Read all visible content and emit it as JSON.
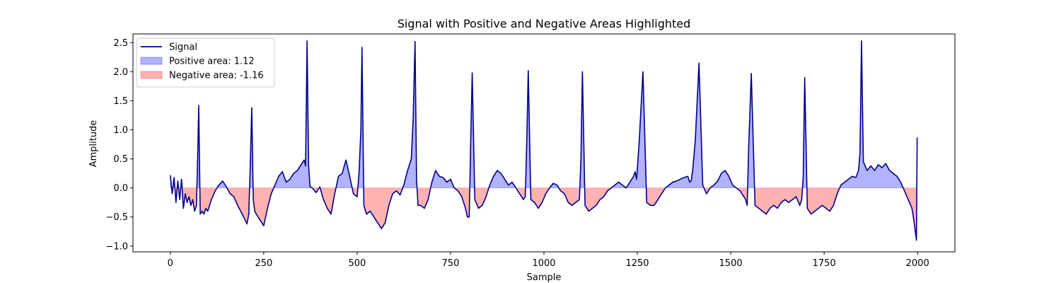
{
  "chart_data": {
    "type": "line",
    "title": "Signal with Positive and Negative Areas Highlighted",
    "xlabel": "Sample",
    "ylabel": "Amplitude",
    "xlim": [
      -100,
      2100
    ],
    "ylim": [
      -1.1,
      2.65
    ],
    "xticks": [
      0,
      250,
      500,
      750,
      1000,
      1250,
      1500,
      1750,
      2000
    ],
    "yticks": [
      -1.0,
      -0.5,
      0.0,
      0.5,
      1.0,
      1.5,
      2.0,
      2.5
    ],
    "grid": false,
    "legend_position": "top-left",
    "legend": [
      {
        "label": "Signal",
        "kind": "line",
        "color": "#00008b"
      },
      {
        "label": "Positive area: 1.12",
        "kind": "patch",
        "color": "#0000ff"
      },
      {
        "label": "Negative area: -1.16",
        "kind": "patch",
        "color": "#ff0000"
      }
    ],
    "series": [
      {
        "name": "Signal",
        "color": "#00008b",
        "fill_positive_color": "#0000ff",
        "fill_negative_color": "#ff0000",
        "x": [
          0,
          5,
          10,
          15,
          20,
          25,
          30,
          35,
          40,
          45,
          50,
          55,
          60,
          65,
          70,
          73,
          76,
          80,
          85,
          90,
          95,
          100,
          110,
          120,
          130,
          140,
          150,
          160,
          170,
          180,
          190,
          200,
          205,
          210,
          214,
          218,
          222,
          226,
          230,
          240,
          250,
          260,
          270,
          280,
          290,
          300,
          310,
          320,
          330,
          340,
          350,
          358,
          362,
          366,
          370,
          374,
          380,
          390,
          400,
          410,
          420,
          430,
          440,
          450,
          460,
          470,
          480,
          490,
          500,
          505,
          510,
          513,
          518,
          525,
          535,
          545,
          555,
          565,
          575,
          585,
          595,
          605,
          615,
          625,
          635,
          640,
          645,
          650,
          655,
          659,
          663,
          670,
          680,
          690,
          700,
          710,
          720,
          730,
          740,
          750,
          760,
          770,
          780,
          790,
          795,
          800,
          804,
          808,
          815,
          825,
          835,
          845,
          855,
          865,
          875,
          885,
          895,
          905,
          915,
          925,
          935,
          945,
          950,
          954,
          958,
          965,
          975,
          985,
          995,
          1005,
          1015,
          1025,
          1035,
          1045,
          1055,
          1065,
          1075,
          1085,
          1095,
          1099,
          1103,
          1110,
          1120,
          1130,
          1140,
          1150,
          1160,
          1170,
          1180,
          1190,
          1200,
          1210,
          1220,
          1230,
          1240,
          1244,
          1248,
          1255,
          1265,
          1275,
          1285,
          1295,
          1305,
          1315,
          1325,
          1335,
          1345,
          1355,
          1365,
          1375,
          1385,
          1390,
          1394,
          1398,
          1405,
          1415,
          1425,
          1435,
          1445,
          1455,
          1465,
          1475,
          1485,
          1495,
          1505,
          1515,
          1525,
          1535,
          1540,
          1544,
          1548,
          1555,
          1565,
          1575,
          1585,
          1595,
          1605,
          1615,
          1625,
          1635,
          1645,
          1655,
          1665,
          1675,
          1685,
          1690,
          1694,
          1698,
          1705,
          1715,
          1725,
          1735,
          1745,
          1755,
          1765,
          1775,
          1785,
          1795,
          1805,
          1815,
          1825,
          1835,
          1842,
          1846,
          1850,
          1855,
          1865,
          1875,
          1885,
          1895,
          1905,
          1915,
          1925,
          1935,
          1945,
          1955,
          1965,
          1975,
          1985,
          1990,
          1994,
          1997,
          1999
        ],
        "y": [
          0.22,
          -0.1,
          0.18,
          -0.25,
          0.12,
          -0.2,
          0.15,
          -0.35,
          -0.1,
          -0.25,
          -0.15,
          -0.3,
          -0.2,
          -0.4,
          -0.3,
          0.5,
          1.42,
          -0.45,
          -0.4,
          -0.45,
          -0.35,
          -0.4,
          -0.2,
          -0.05,
          0.05,
          0.12,
          0.02,
          -0.1,
          -0.15,
          -0.3,
          -0.42,
          -0.55,
          -0.62,
          -0.45,
          0.4,
          1.38,
          -0.2,
          -0.4,
          -0.45,
          -0.55,
          -0.65,
          -0.35,
          -0.1,
          0.05,
          0.2,
          0.28,
          0.1,
          0.15,
          0.25,
          0.3,
          0.4,
          0.48,
          0.38,
          2.53,
          0.4,
          0.02,
          0.0,
          -0.08,
          0.02,
          -0.2,
          -0.35,
          -0.45,
          -0.1,
          0.2,
          0.25,
          0.48,
          0.2,
          -0.1,
          -0.15,
          0.25,
          1.0,
          2.42,
          -0.3,
          -0.45,
          -0.4,
          -0.5,
          -0.6,
          -0.7,
          -0.6,
          -0.3,
          -0.1,
          -0.05,
          -0.12,
          0.05,
          0.3,
          0.4,
          0.5,
          1.2,
          2.52,
          0.15,
          -0.3,
          -0.3,
          -0.35,
          -0.2,
          0.1,
          0.3,
          0.2,
          0.18,
          0.1,
          0.15,
          0.0,
          -0.05,
          -0.15,
          -0.35,
          -0.5,
          -0.5,
          0.8,
          1.98,
          -0.2,
          -0.35,
          -0.3,
          -0.15,
          0.05,
          0.2,
          0.3,
          0.25,
          0.15,
          0.05,
          0.1,
          0.0,
          -0.1,
          -0.2,
          -0.15,
          0.8,
          2.02,
          -0.2,
          -0.25,
          -0.35,
          -0.25,
          -0.1,
          0.0,
          0.08,
          0.05,
          -0.05,
          -0.1,
          -0.25,
          -0.3,
          -0.25,
          -0.2,
          0.5,
          2.0,
          -0.3,
          -0.4,
          -0.35,
          -0.3,
          -0.2,
          -0.15,
          -0.05,
          0.0,
          0.05,
          0.1,
          0.05,
          0.0,
          0.1,
          0.2,
          0.28,
          0.15,
          0.8,
          2.0,
          -0.25,
          -0.3,
          -0.3,
          -0.2,
          -0.1,
          0.0,
          0.05,
          0.1,
          0.12,
          0.15,
          0.18,
          0.2,
          0.1,
          0.12,
          0.3,
          0.8,
          2.15,
          0.05,
          -0.1,
          0.0,
          0.05,
          0.12,
          0.25,
          0.3,
          0.2,
          0.05,
          0.0,
          -0.05,
          -0.15,
          -0.2,
          -0.3,
          0.7,
          1.97,
          -0.3,
          -0.35,
          -0.4,
          -0.45,
          -0.35,
          -0.3,
          -0.35,
          -0.25,
          -0.2,
          -0.25,
          -0.2,
          -0.15,
          -0.3,
          -0.2,
          0.2,
          1.9,
          -0.35,
          -0.45,
          -0.4,
          -0.35,
          -0.3,
          -0.35,
          -0.4,
          -0.3,
          -0.1,
          0.05,
          0.1,
          0.15,
          0.2,
          0.18,
          0.3,
          0.6,
          2.53,
          0.45,
          0.3,
          0.38,
          0.3,
          0.4,
          0.35,
          0.42,
          0.3,
          0.25,
          0.2,
          0.1,
          -0.05,
          -0.2,
          -0.35,
          -0.55,
          -0.75,
          -0.9,
          0.87
        ],
        "fill_positive_color_note": ""
      }
    ]
  }
}
